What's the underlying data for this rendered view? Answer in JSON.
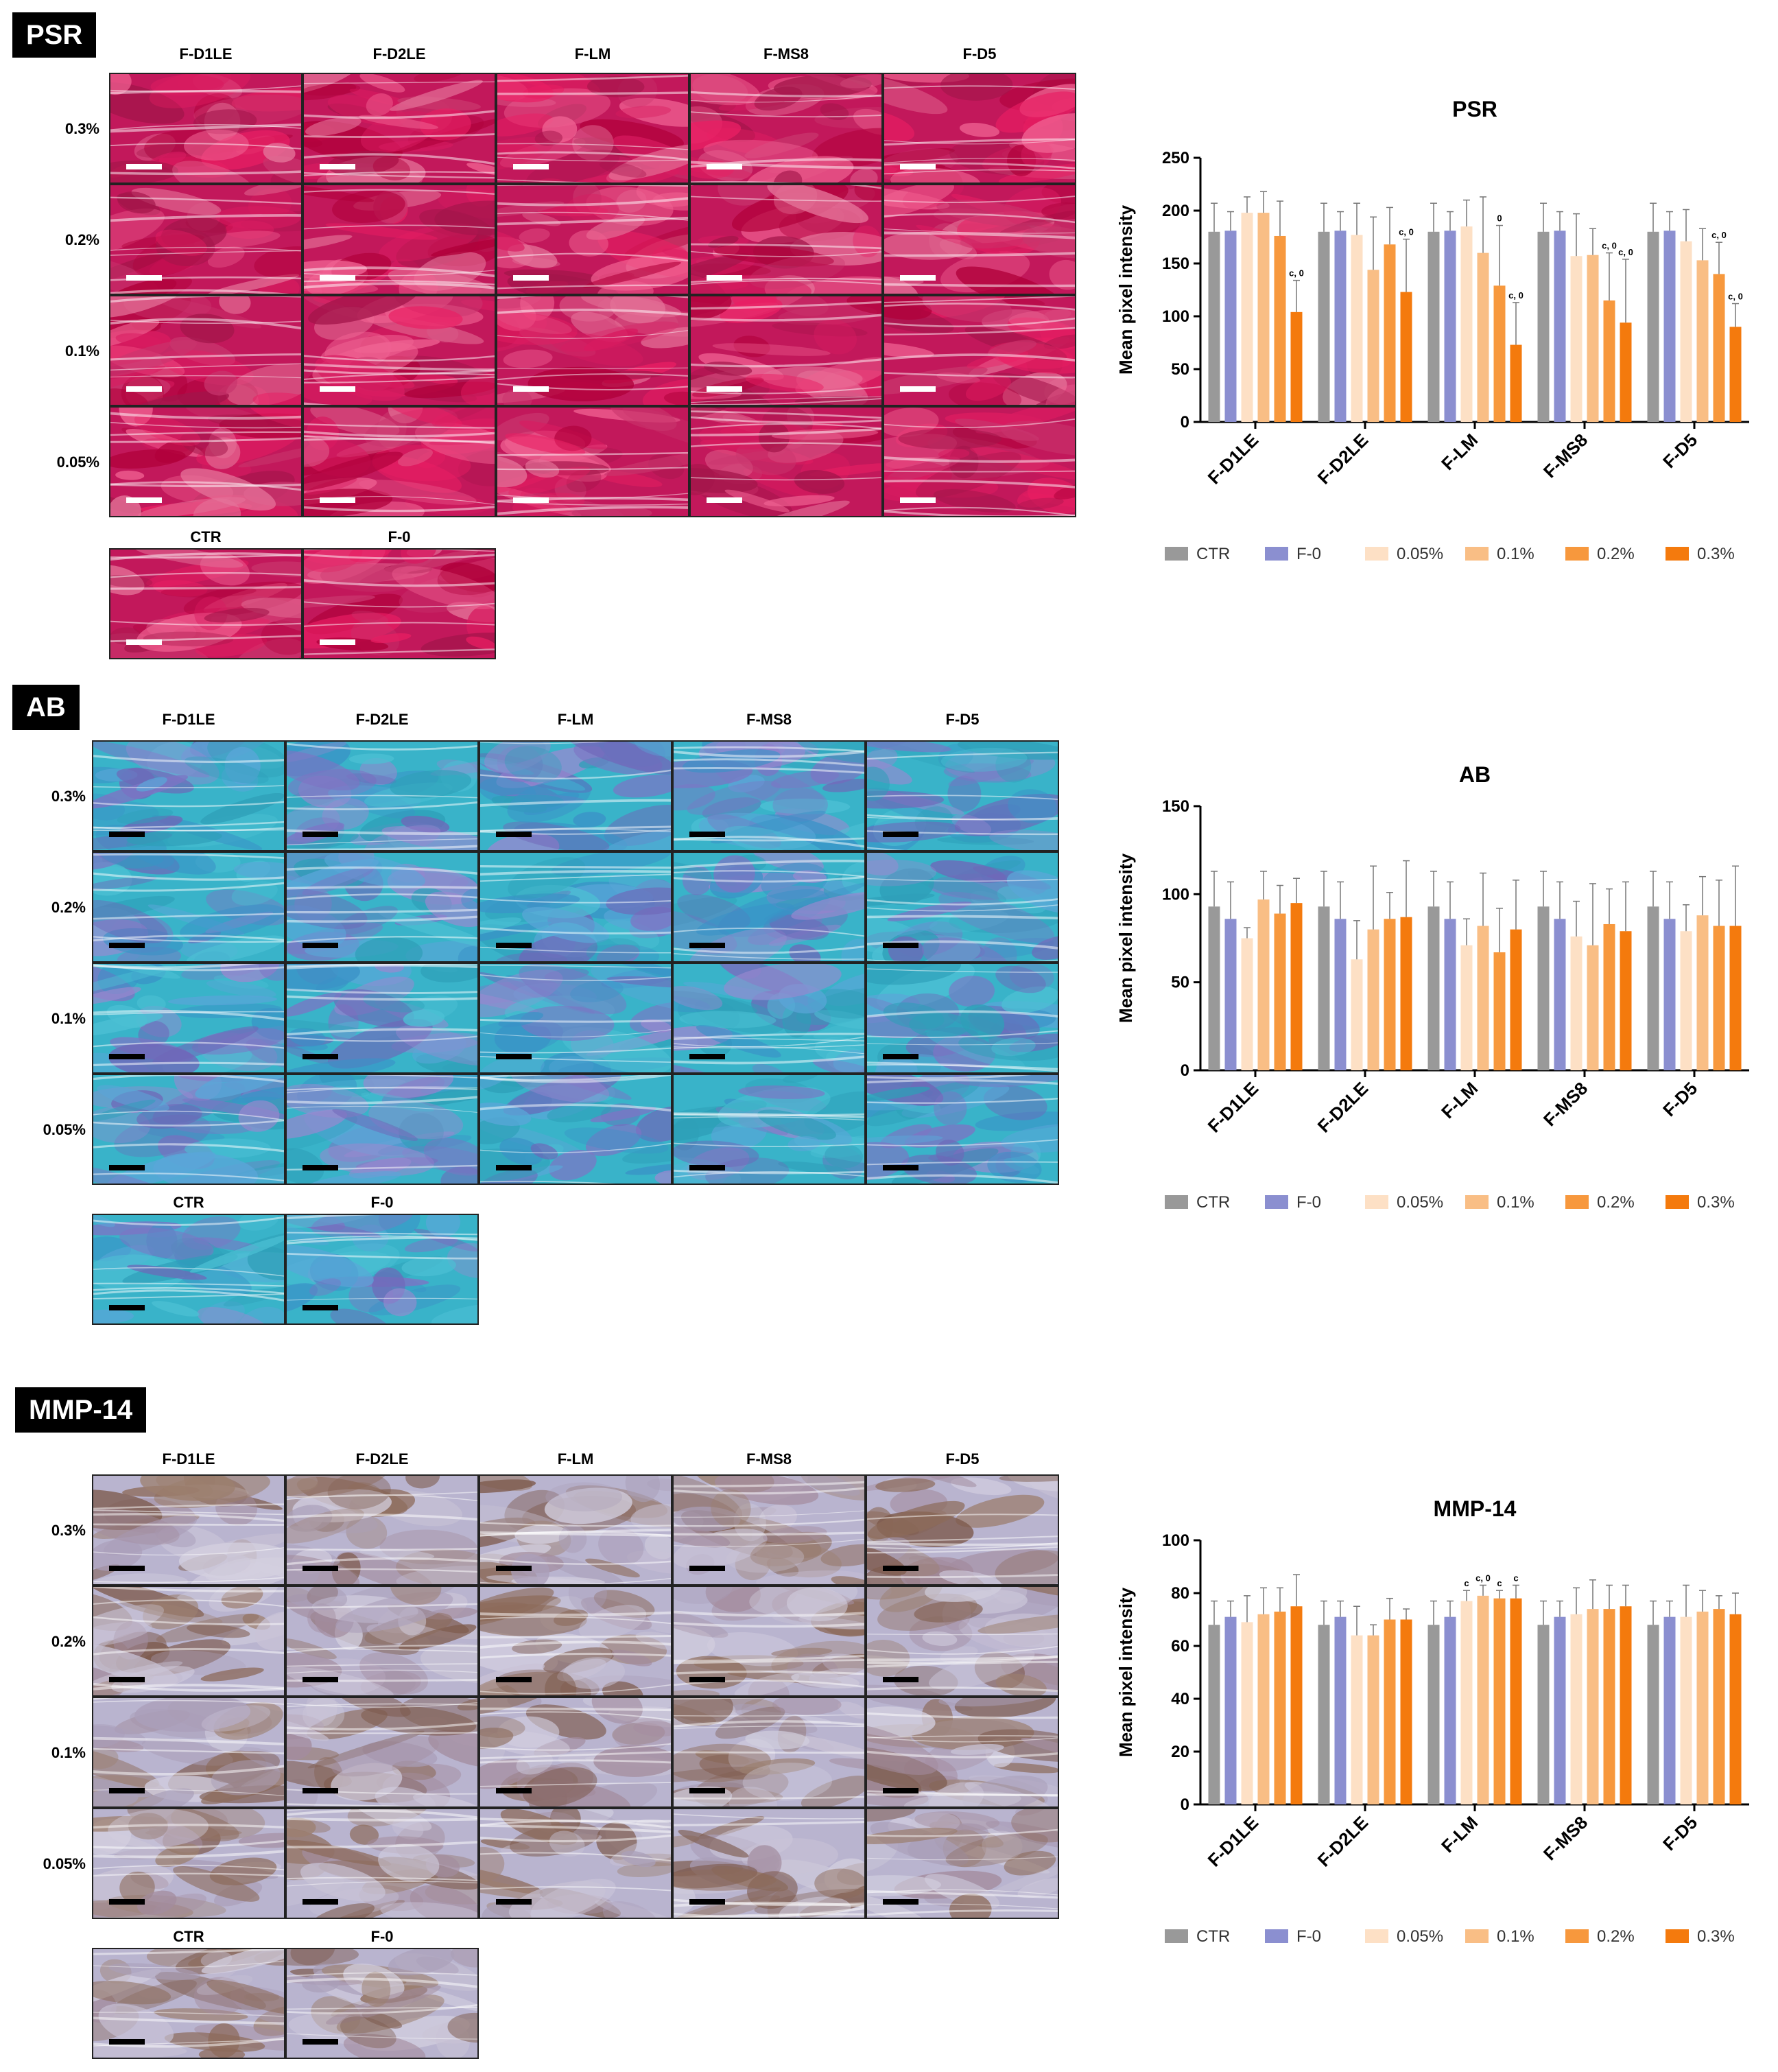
{
  "colors": {
    "series": [
      "#999999",
      "#8b8fd0",
      "#fde0c5",
      "#f9be85",
      "#f7983d",
      "#f47a0d"
    ],
    "psr": [
      "#c2185b",
      "#d81b60",
      "#e91e63",
      "#b0003a",
      "#e57399",
      "#c9356d",
      "#f06292",
      "#a3154a"
    ],
    "ab": [
      "#39b3c9",
      "#5aa6d8",
      "#7d74c4",
      "#2e9fb8",
      "#9a88d0",
      "#4cc0d4",
      "#6f66b8",
      "#3a92c7"
    ],
    "mmp": [
      "#b9b4cf",
      "#8c6a59",
      "#a38c9e",
      "#c9c3d6",
      "#7d5a4c",
      "#aa9fb9",
      "#9c7f6f",
      "#d3cfdf"
    ]
  },
  "panels": [
    {
      "tag": "PSR",
      "columns": [
        "F-D1LE",
        "F-D2LE",
        "F-LM",
        "F-MS8",
        "F-D5"
      ],
      "rows": [
        "0.3%",
        "0.2%",
        "0.1%",
        "0.05%"
      ],
      "controls": [
        "CTR",
        "F-0"
      ]
    },
    {
      "tag": "AB",
      "columns": [
        "F-D1LE",
        "F-D2LE",
        "F-LM",
        "F-MS8",
        "F-D5"
      ],
      "rows": [
        "0.3%",
        "0.2%",
        "0.1%",
        "0.05%"
      ],
      "controls": [
        "CTR",
        "F-0"
      ]
    },
    {
      "tag": "MMP-14",
      "columns": [
        "F-D1LE",
        "F-D2LE",
        "F-LM",
        "F-MS8",
        "F-D5"
      ],
      "rows": [
        "0.3%",
        "0.2%",
        "0.1%",
        "0.05%"
      ],
      "controls": [
        "CTR",
        "F-0"
      ]
    }
  ],
  "chart_data": [
    {
      "type": "bar",
      "title": "PSR",
      "ylabel": "Mean pixel intensity",
      "xlabel": "",
      "ylim": [
        0,
        250
      ],
      "yticks": [
        0,
        50,
        100,
        150,
        200,
        250
      ],
      "categories": [
        "F-D1LE",
        "F-D2LE",
        "F-LM",
        "F-MS8",
        "F-D5"
      ],
      "legend_position": "bottom",
      "series": [
        {
          "name": "CTR",
          "values": [
            180,
            180,
            180,
            180,
            180
          ],
          "errors": [
            27,
            27,
            27,
            27,
            27
          ]
        },
        {
          "name": "F-0",
          "values": [
            181,
            181,
            181,
            181,
            181
          ],
          "errors": [
            18,
            18,
            18,
            18,
            18
          ]
        },
        {
          "name": "0.05%",
          "values": [
            198,
            177,
            185,
            157,
            171
          ],
          "errors": [
            15,
            30,
            25,
            40,
            30
          ]
        },
        {
          "name": "0.1%",
          "values": [
            198,
            144,
            160,
            158,
            153
          ],
          "errors": [
            20,
            50,
            53,
            25,
            30
          ]
        },
        {
          "name": "0.2%",
          "values": [
            176,
            168,
            129,
            115,
            140
          ],
          "errors": [
            33,
            35,
            57,
            45,
            30
          ]
        },
        {
          "name": "0.3%",
          "values": [
            104,
            123,
            73,
            94,
            90
          ],
          "errors": [
            30,
            50,
            40,
            60,
            22
          ]
        }
      ],
      "annotations": [
        {
          "category": 0,
          "series": 5,
          "text": "c, 0"
        },
        {
          "category": 1,
          "series": 5,
          "text": "c, 0"
        },
        {
          "category": 2,
          "series": 4,
          "text": "0"
        },
        {
          "category": 2,
          "series": 5,
          "text": "c, 0"
        },
        {
          "category": 3,
          "series": 4,
          "text": "c, 0"
        },
        {
          "category": 3,
          "series": 5,
          "text": "c, 0"
        },
        {
          "category": 4,
          "series": 4,
          "text": "c, 0"
        },
        {
          "category": 4,
          "series": 5,
          "text": "c, 0"
        }
      ]
    },
    {
      "type": "bar",
      "title": "AB",
      "ylabel": "Mean pixel intensity",
      "xlabel": "",
      "ylim": [
        0,
        150
      ],
      "yticks": [
        0,
        50,
        100,
        150
      ],
      "categories": [
        "F-D1LE",
        "F-D2LE",
        "F-LM",
        "F-MS8",
        "F-D5"
      ],
      "legend_position": "bottom",
      "series": [
        {
          "name": "CTR",
          "values": [
            93,
            93,
            93,
            93,
            93
          ],
          "errors": [
            20,
            20,
            20,
            20,
            20
          ]
        },
        {
          "name": "F-0",
          "values": [
            86,
            86,
            86,
            86,
            86
          ],
          "errors": [
            21,
            21,
            21,
            21,
            21
          ]
        },
        {
          "name": "0.05%",
          "values": [
            75,
            63,
            71,
            76,
            79
          ],
          "errors": [
            6,
            22,
            15,
            20,
            15
          ]
        },
        {
          "name": "0.1%",
          "values": [
            97,
            80,
            82,
            71,
            88
          ],
          "errors": [
            16,
            36,
            30,
            35,
            22
          ]
        },
        {
          "name": "0.2%",
          "values": [
            89,
            86,
            67,
            83,
            82
          ],
          "errors": [
            16,
            15,
            25,
            20,
            26
          ]
        },
        {
          "name": "0.3%",
          "values": [
            95,
            87,
            80,
            79,
            82
          ],
          "errors": [
            14,
            32,
            28,
            28,
            34
          ]
        }
      ],
      "annotations": []
    },
    {
      "type": "bar",
      "title": "MMP-14",
      "ylabel": "Mean pixel intensity",
      "xlabel": "",
      "ylim": [
        0,
        100
      ],
      "yticks": [
        0,
        20,
        40,
        60,
        80,
        100
      ],
      "categories": [
        "F-D1LE",
        "F-D2LE",
        "F-LM",
        "F-MS8",
        "F-D5"
      ],
      "legend_position": "bottom",
      "series": [
        {
          "name": "CTR",
          "values": [
            68,
            68,
            68,
            68,
            68
          ],
          "errors": [
            9,
            9,
            9,
            9,
            9
          ]
        },
        {
          "name": "F-0",
          "values": [
            71,
            71,
            71,
            71,
            71
          ],
          "errors": [
            6,
            6,
            6,
            6,
            6
          ]
        },
        {
          "name": "0.05%",
          "values": [
            69,
            64,
            77,
            72,
            71
          ],
          "errors": [
            10,
            11,
            4,
            10,
            12
          ]
        },
        {
          "name": "0.1%",
          "values": [
            72,
            64,
            79,
            74,
            73
          ],
          "errors": [
            10,
            4,
            4,
            11,
            8
          ]
        },
        {
          "name": "0.2%",
          "values": [
            73,
            70,
            78,
            74,
            74
          ],
          "errors": [
            9,
            8,
            3,
            9,
            5
          ]
        },
        {
          "name": "0.3%",
          "values": [
            75,
            70,
            78,
            75,
            72
          ],
          "errors": [
            12,
            4,
            5,
            8,
            8
          ]
        }
      ],
      "annotations": [
        {
          "category": 2,
          "series": 2,
          "text": "c"
        },
        {
          "category": 2,
          "series": 3,
          "text": "c, 0"
        },
        {
          "category": 2,
          "series": 4,
          "text": "c"
        },
        {
          "category": 2,
          "series": 5,
          "text": "c"
        }
      ]
    }
  ]
}
